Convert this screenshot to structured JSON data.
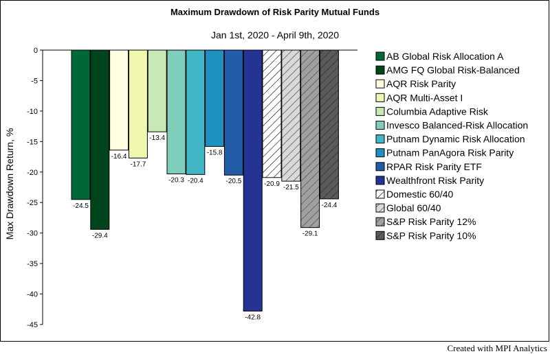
{
  "chart_data": {
    "type": "bar",
    "title": "Maximum Drawdown of Risk Parity Mutual Funds",
    "subtitle": "Jan 1st, 2020 - April 9th, 2020",
    "ylabel": "Max Drawdown Return, %",
    "xlabel": "",
    "ylim": [
      -45,
      0
    ],
    "yticks": [
      0,
      -5,
      -10,
      -15,
      -20,
      -25,
      -30,
      -35,
      -40,
      -45
    ],
    "grid": false,
    "legend_position": "right",
    "series": [
      {
        "name": "AB Global Risk Allocation A",
        "value": -24.5,
        "label": "-24.5",
        "color": "#006837",
        "pattern": "solid"
      },
      {
        "name": "AMG FQ Global Risk-Balanced",
        "value": -29.4,
        "label": "-29.4",
        "color": "#00441b",
        "pattern": "solid"
      },
      {
        "name": "AQR Risk Parity",
        "value": -16.4,
        "label": "-16.4",
        "color": "#ffffe0",
        "pattern": "solid"
      },
      {
        "name": "AQR Multi-Asset I",
        "value": -17.7,
        "label": "-17.7",
        "color": "#f0f7b0",
        "pattern": "solid"
      },
      {
        "name": "Columbia Adaptive Risk",
        "value": -13.4,
        "label": "-13.4",
        "color": "#c7e9b4",
        "pattern": "solid"
      },
      {
        "name": "Invesco Balanced-Risk Allocation",
        "value": -20.3,
        "label": "-20.3",
        "color": "#7fcdbb",
        "pattern": "solid"
      },
      {
        "name": "Putnam Dynamic Risk Allocation",
        "value": -20.4,
        "label": "-20.4",
        "color": "#41b6c4",
        "pattern": "solid"
      },
      {
        "name": "Putnam PanAgora Risk Parity",
        "value": -15.8,
        "label": "-15.8",
        "color": "#1d91c0",
        "pattern": "solid"
      },
      {
        "name": "RPAR Risk Parity ETF",
        "value": -20.5,
        "label": "-20.5",
        "color": "#225ea8",
        "pattern": "solid"
      },
      {
        "name": "Wealthfront Risk Parity",
        "value": -42.8,
        "label": "-42.8",
        "color": "#253494",
        "pattern": "solid"
      },
      {
        "name": "Domestic 60/40",
        "value": -20.9,
        "label": "-20.9",
        "color": "#ffffff",
        "pattern": "hatch"
      },
      {
        "name": "Global 60/40",
        "value": -21.5,
        "label": "-21.5",
        "color": "#d0d0d0",
        "pattern": "hatch"
      },
      {
        "name": "S&P Risk Parity 12%",
        "value": -29.1,
        "label": "-29.1",
        "color": "#969696",
        "pattern": "hatch"
      },
      {
        "name": "S&P Risk Parity 10%",
        "value": -24.4,
        "label": "-24.4",
        "color": "#525252",
        "pattern": "hatch"
      }
    ]
  },
  "footer": "Created with MPI Analytics"
}
